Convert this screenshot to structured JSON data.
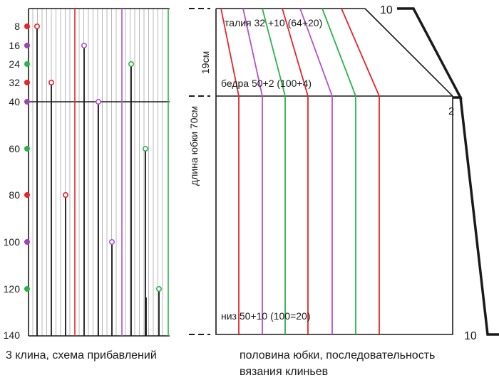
{
  "left_panel": {
    "row_labels": [
      "8",
      "16",
      "24",
      "32",
      "40",
      "60",
      "80",
      "100",
      "120",
      "140"
    ],
    "dot_colors": [
      "#e8232a",
      "#9a45b5",
      "#2ab34a",
      "#e8232a",
      "#9a45b5",
      "#2ab34a",
      "#e8232a",
      "#9a45b5",
      "#2ab34a"
    ],
    "caption": "3 клина, схема прибавлений"
  },
  "right_panel": {
    "label_waist": "талия 32 +10 (64+20)",
    "label_hips": "бедра 50+2 (100+4)",
    "label_hem": "низ 50+10 (100=20)",
    "label_19": "19см",
    "label_length": "длина юбки 70см",
    "label_top_10": "10",
    "label_2": "2",
    "label_bottom_10": "10",
    "caption_line1": "половина юбки, последовательность",
    "caption_line2": "вязания клиньев"
  },
  "colors": {
    "red": "#e8232a",
    "purple": "#b44fd0",
    "green": "#2ab34a",
    "line": "#1a1a1a",
    "grid": "#b8b8b8"
  }
}
